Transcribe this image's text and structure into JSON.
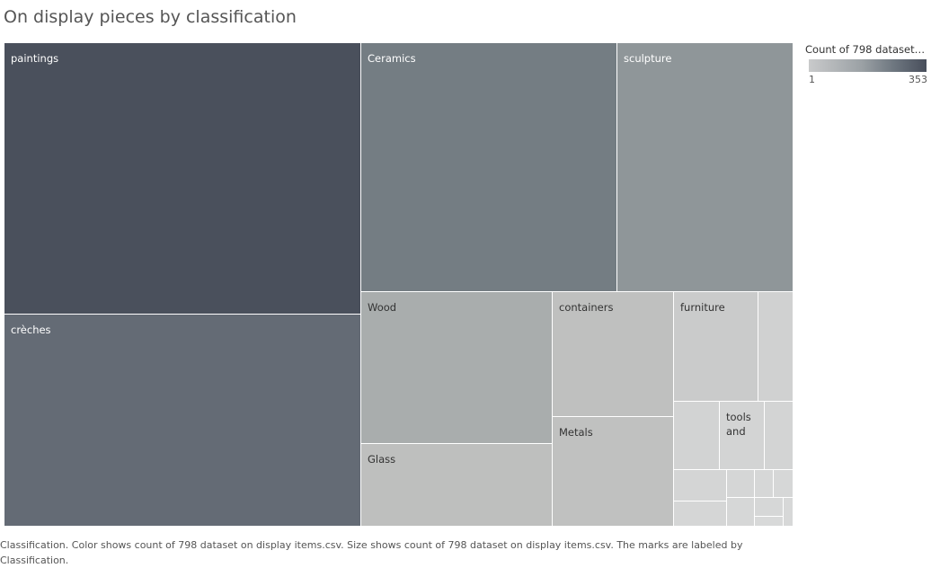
{
  "title": "On display pieces by classification",
  "legend": {
    "title": "Count of 798 dataset o..",
    "min_label": "1",
    "max_label": "353",
    "color_low": "#c9cacb",
    "color_high": "#484e5b"
  },
  "caption": "Classification.  Color shows count of 798 dataset on display items.csv.  Size shows count of 798 dataset on display items.csv.  The marks are labeled by Classification.",
  "chart_data": {
    "type": "treemap",
    "title": "On display pieces by classification",
    "color_measure": "Count of 798 dataset on display items.csv",
    "size_measure": "Count of 798 dataset on display items.csv",
    "color_range": [
      1,
      353
    ],
    "items": [
      {
        "label": "paintings",
        "value": 353,
        "color": "#4a505c",
        "text_color": "#ffffff"
      },
      {
        "label": "crèches",
        "value": 265,
        "color": "#646b75",
        "text_color": "#ffffff"
      },
      {
        "label": "Ceramics",
        "value": 230,
        "color": "#747d83",
        "text_color": "#ffffff"
      },
      {
        "label": "sculpture",
        "value": 160,
        "color": "#8f9699",
        "text_color": "#ffffff"
      },
      {
        "label": "Wood",
        "value": 105,
        "color": "#a9adad",
        "text_color": "#333333"
      },
      {
        "label": "Glass",
        "value": 55,
        "color": "#bebfbe",
        "text_color": "#333333"
      },
      {
        "label": "containers",
        "value": 57,
        "color": "#bfc0bf",
        "text_color": "#333333"
      },
      {
        "label": "Metals",
        "value": 50,
        "color": "#c0c1c0",
        "text_color": "#333333"
      },
      {
        "label": "furniture",
        "value": 30,
        "color": "#cacbcb",
        "text_color": "#333333"
      },
      {
        "label": "",
        "value": 11,
        "color": "#d0d1d1",
        "text_color": "#333333"
      },
      {
        "label": "",
        "value": 15,
        "color": "#d2d3d3",
        "text_color": "#333333"
      },
      {
        "label": "tools and",
        "value": 15,
        "color": "#d3d4d4",
        "text_color": "#333333"
      },
      {
        "label": "",
        "value": 9,
        "color": "#d3d4d4",
        "text_color": "#333333"
      },
      {
        "label": "",
        "value": 6,
        "color": "#d4d5d5",
        "text_color": "#333333"
      },
      {
        "label": "",
        "value": 4,
        "color": "#d5d6d6",
        "text_color": "#333333"
      },
      {
        "label": "",
        "value": 2,
        "color": "#d6d7d7",
        "text_color": "#333333"
      },
      {
        "label": "",
        "value": 2,
        "color": "#d6d7d7",
        "text_color": "#333333"
      },
      {
        "label": "",
        "value": 6,
        "color": "#d5d6d6",
        "text_color": "#333333"
      },
      {
        "label": "",
        "value": 3,
        "color": "#d6d7d7",
        "text_color": "#333333"
      },
      {
        "label": "",
        "value": 2,
        "color": "#d6d7d7",
        "text_color": "#333333"
      },
      {
        "label": "",
        "value": 2,
        "color": "#d7d8d8",
        "text_color": "#333333"
      },
      {
        "label": "",
        "value": 1,
        "color": "#d8d9d9",
        "text_color": "#333333"
      }
    ]
  }
}
